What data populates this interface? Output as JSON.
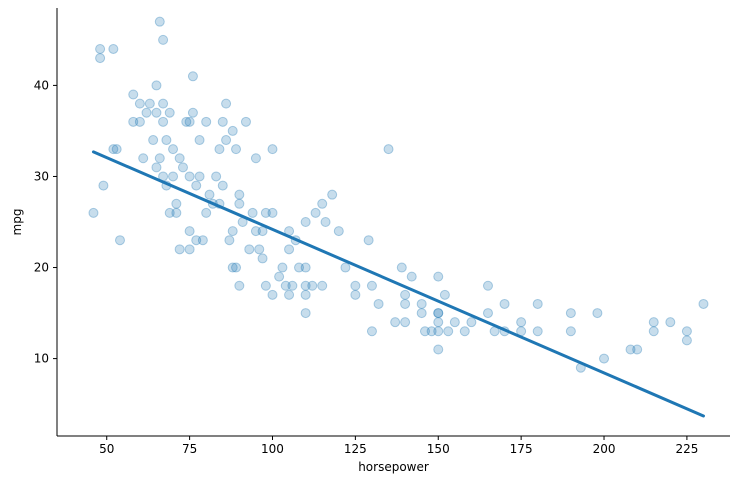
{
  "chart_data": {
    "type": "scatter",
    "title": "",
    "xlabel": "horsepower",
    "ylabel": "mpg",
    "xlim": [
      35,
      238
    ],
    "ylim": [
      1.5,
      48.5
    ],
    "xticks": [
      50,
      75,
      100,
      125,
      150,
      175,
      200,
      225
    ],
    "yticks": [
      10,
      20,
      30,
      40
    ],
    "grid": false,
    "legend": "none",
    "colors": {
      "points": "#1f77b4",
      "line": "#1f77b4"
    },
    "series": [
      {
        "kind": "points",
        "x": [
          46,
          48,
          48,
          49,
          52,
          52,
          53,
          54,
          58,
          58,
          60,
          60,
          61,
          62,
          63,
          64,
          65,
          65,
          65,
          66,
          66,
          67,
          67,
          67,
          67,
          68,
          68,
          69,
          69,
          70,
          70,
          71,
          71,
          72,
          72,
          73,
          74,
          75,
          75,
          75,
          75,
          76,
          76,
          77,
          77,
          78,
          78,
          79,
          80,
          80,
          81,
          82,
          83,
          84,
          84,
          85,
          85,
          86,
          86,
          87,
          88,
          88,
          88,
          89,
          89,
          90,
          90,
          90,
          91,
          92,
          93,
          94,
          95,
          95,
          96,
          97,
          97,
          98,
          98,
          100,
          100,
          100,
          102,
          103,
          104,
          105,
          105,
          105,
          106,
          107,
          108,
          110,
          110,
          110,
          110,
          110,
          112,
          113,
          115,
          115,
          116,
          118,
          120,
          122,
          125,
          125,
          129,
          130,
          130,
          132,
          135,
          137,
          139,
          140,
          140,
          140,
          142,
          145,
          145,
          146,
          148,
          150,
          150,
          150,
          150,
          150,
          150,
          152,
          153,
          155,
          158,
          160,
          165,
          165,
          167,
          170,
          170,
          175,
          175,
          180,
          180,
          190,
          190,
          193,
          198,
          200,
          208,
          210,
          215,
          215,
          220,
          225,
          225,
          230
        ],
        "y": [
          26,
          43,
          44,
          29,
          44,
          33,
          33,
          23,
          39,
          36,
          38,
          36,
          32,
          37,
          38,
          34,
          40,
          37,
          31,
          47,
          32,
          45,
          36,
          38,
          30,
          29,
          34,
          37,
          26,
          33,
          30,
          27,
          26,
          32,
          22,
          31,
          36,
          36,
          30,
          24,
          22,
          37,
          41,
          29,
          23,
          30,
          34,
          23,
          36,
          26,
          28,
          27,
          30,
          33,
          27,
          36,
          29,
          38,
          34,
          23,
          35,
          24,
          20,
          33,
          20,
          27,
          18,
          28,
          25,
          36,
          22,
          26,
          32,
          24,
          22,
          21,
          24,
          18,
          26,
          33,
          26,
          17,
          19,
          20,
          18,
          22,
          24,
          17,
          18,
          23,
          20,
          25,
          20,
          18,
          17,
          15,
          18,
          26,
          27,
          18,
          25,
          28,
          24,
          20,
          18,
          17,
          23,
          18,
          13,
          16,
          33,
          14,
          20,
          16,
          17,
          14,
          19,
          16,
          15,
          13,
          13,
          19,
          15,
          14,
          15,
          13,
          11,
          17,
          13,
          14,
          13,
          14,
          18,
          15,
          13,
          16,
          13,
          14,
          13,
          16,
          13,
          13,
          15,
          9,
          15,
          10,
          11,
          11,
          13,
          14,
          14,
          13,
          12,
          16
        ]
      },
      {
        "kind": "regression",
        "x": [
          46,
          230
        ],
        "y": [
          32.7,
          3.7
        ]
      }
    ]
  }
}
